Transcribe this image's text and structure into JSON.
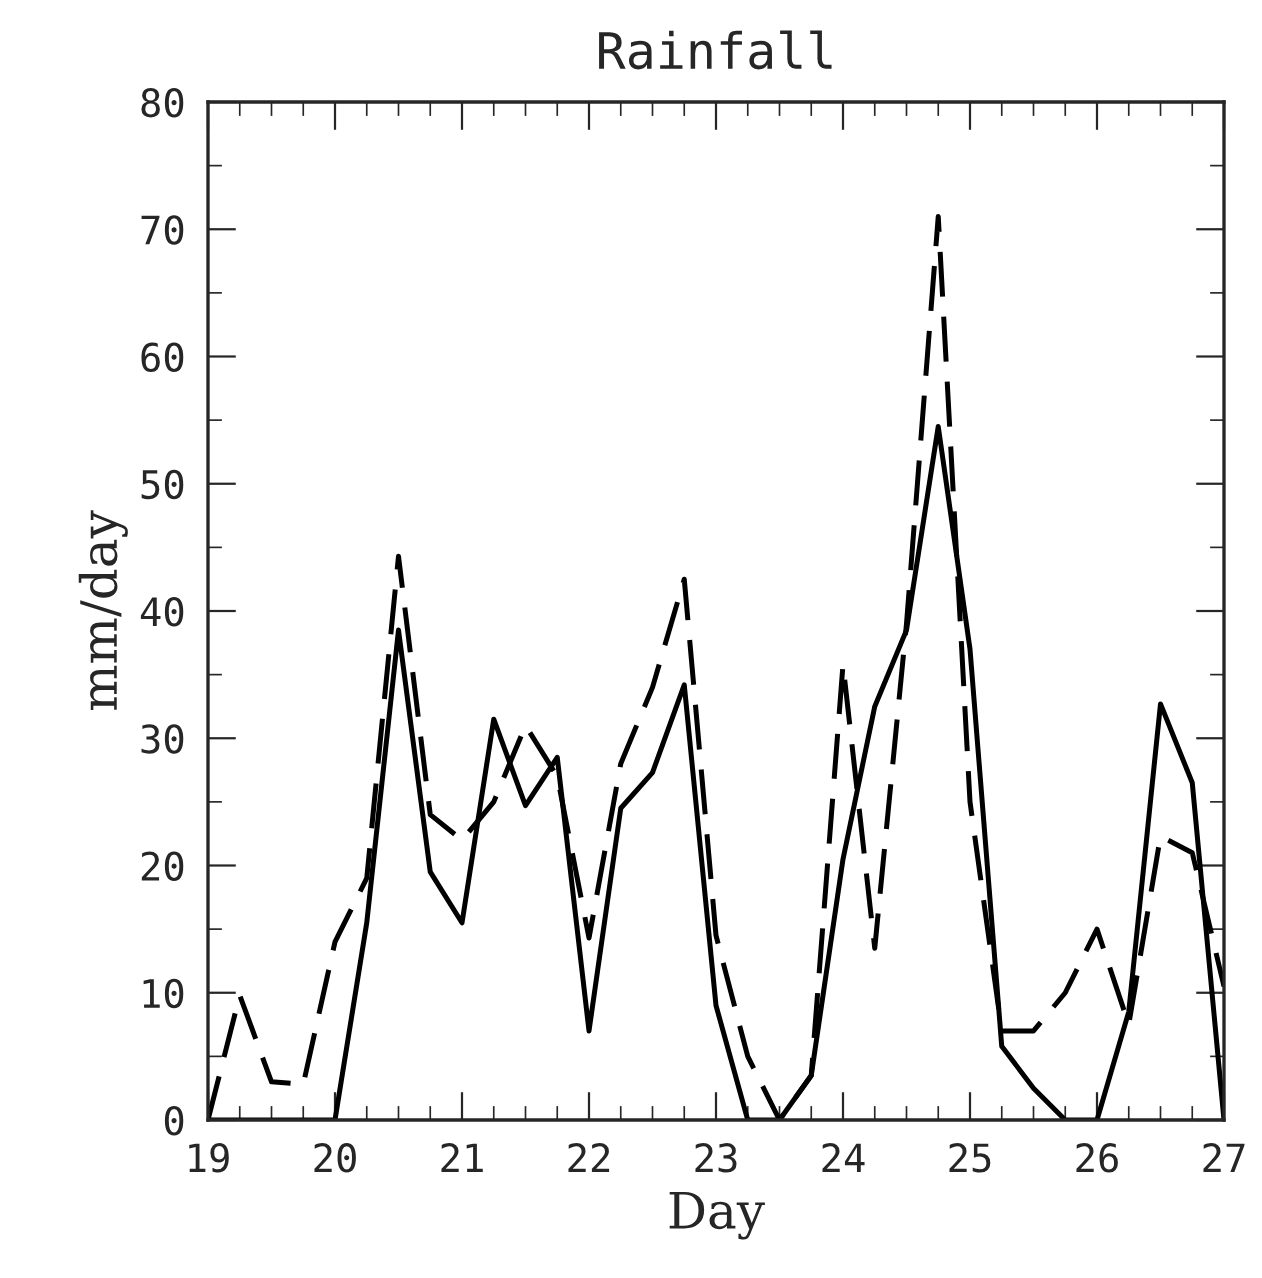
{
  "chart_data": {
    "type": "line",
    "title": "Rainfall",
    "xlabel": "Day",
    "ylabel": "mm/day",
    "x": [
      19,
      19.25,
      19.5,
      19.75,
      20,
      20.25,
      20.5,
      20.75,
      21,
      21.25,
      21.5,
      21.75,
      22,
      22.25,
      22.5,
      22.75,
      23,
      23.25,
      23.5,
      23.75,
      24,
      24.25,
      24.5,
      24.75,
      25,
      25.25,
      25.5,
      25.75,
      26,
      26.25,
      26.5,
      26.75,
      27
    ],
    "series": [
      {
        "color": "#000000",
        "line_style": "solid",
        "values": [
          0,
          0,
          0,
          0,
          0,
          15.5,
          38.5,
          19.5,
          15.5,
          31.5,
          24.7,
          28.5,
          7,
          24.5,
          27.3,
          34.2,
          9,
          0,
          0,
          3.5,
          20.5,
          32.5,
          38.5,
          54.5,
          37,
          5.8,
          2.5,
          0,
          0,
          8.5,
          32.7,
          26.5,
          0
        ]
      },
      {
        "color": "#000000",
        "line_style": "dashed",
        "values": [
          0,
          9.8,
          3,
          2.8,
          14,
          19,
          44.3,
          24,
          22,
          25,
          31,
          27,
          14.3,
          28,
          34,
          42.5,
          14.5,
          5,
          0,
          3.5,
          35.8,
          13.5,
          39,
          71,
          25,
          7,
          7,
          10,
          15,
          7.5,
          22.3,
          21,
          10.5
        ]
      }
    ],
    "xlim": [
      19,
      27
    ],
    "xticks": [
      19,
      20,
      21,
      22,
      23,
      24,
      25,
      26,
      27
    ],
    "ylim": [
      0,
      80
    ],
    "yticks": [
      0,
      10,
      20,
      30,
      40,
      50,
      60,
      70,
      80
    ],
    "grid": false,
    "marker": "none"
  }
}
